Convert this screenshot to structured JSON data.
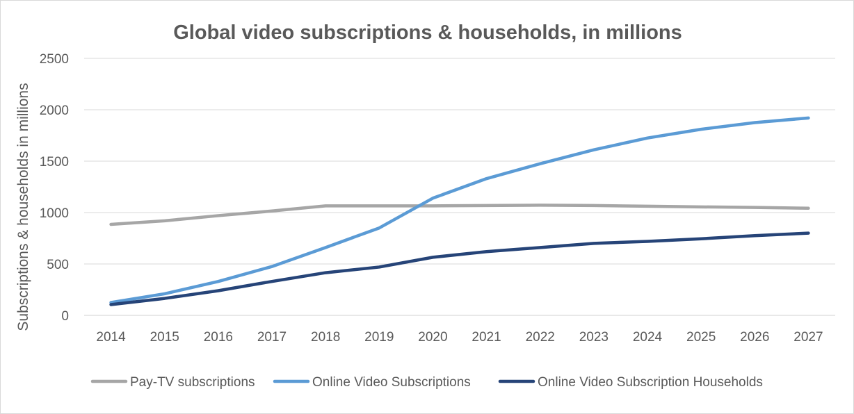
{
  "chart_data": {
    "type": "line",
    "title": "Global video subscriptions & households, in millions",
    "xlabel": "",
    "ylabel": "Subscriptions & households in millions",
    "ylim": [
      0,
      2500
    ],
    "yticks": [
      "0",
      "500",
      "1000",
      "1500",
      "2000",
      "2500"
    ],
    "ytick_values": [
      0,
      500,
      1000,
      1500,
      2000,
      2500
    ],
    "categories": [
      "2014",
      "2015",
      "2016",
      "2017",
      "2018",
      "2019",
      "2020",
      "2021",
      "2022",
      "2023",
      "2024",
      "2025",
      "2026",
      "2027"
    ],
    "grid": true,
    "legend_position": "bottom",
    "series": [
      {
        "name": "Pay-TV subscriptions",
        "color": "#a6a6a6",
        "values": [
          885,
          920,
          970,
          1015,
          1065,
          1065,
          1065,
          1068,
          1072,
          1068,
          1062,
          1055,
          1050,
          1042
        ]
      },
      {
        "name": "Online Video Subscriptions",
        "color": "#5b9bd5",
        "values": [
          125,
          210,
          330,
          475,
          660,
          850,
          1140,
          1330,
          1475,
          1610,
          1725,
          1810,
          1875,
          1920
        ]
      },
      {
        "name": "Online Video Subscription Households",
        "color": "#264478",
        "values": [
          105,
          165,
          240,
          330,
          415,
          470,
          565,
          620,
          660,
          700,
          720,
          745,
          775,
          800
        ]
      }
    ]
  }
}
